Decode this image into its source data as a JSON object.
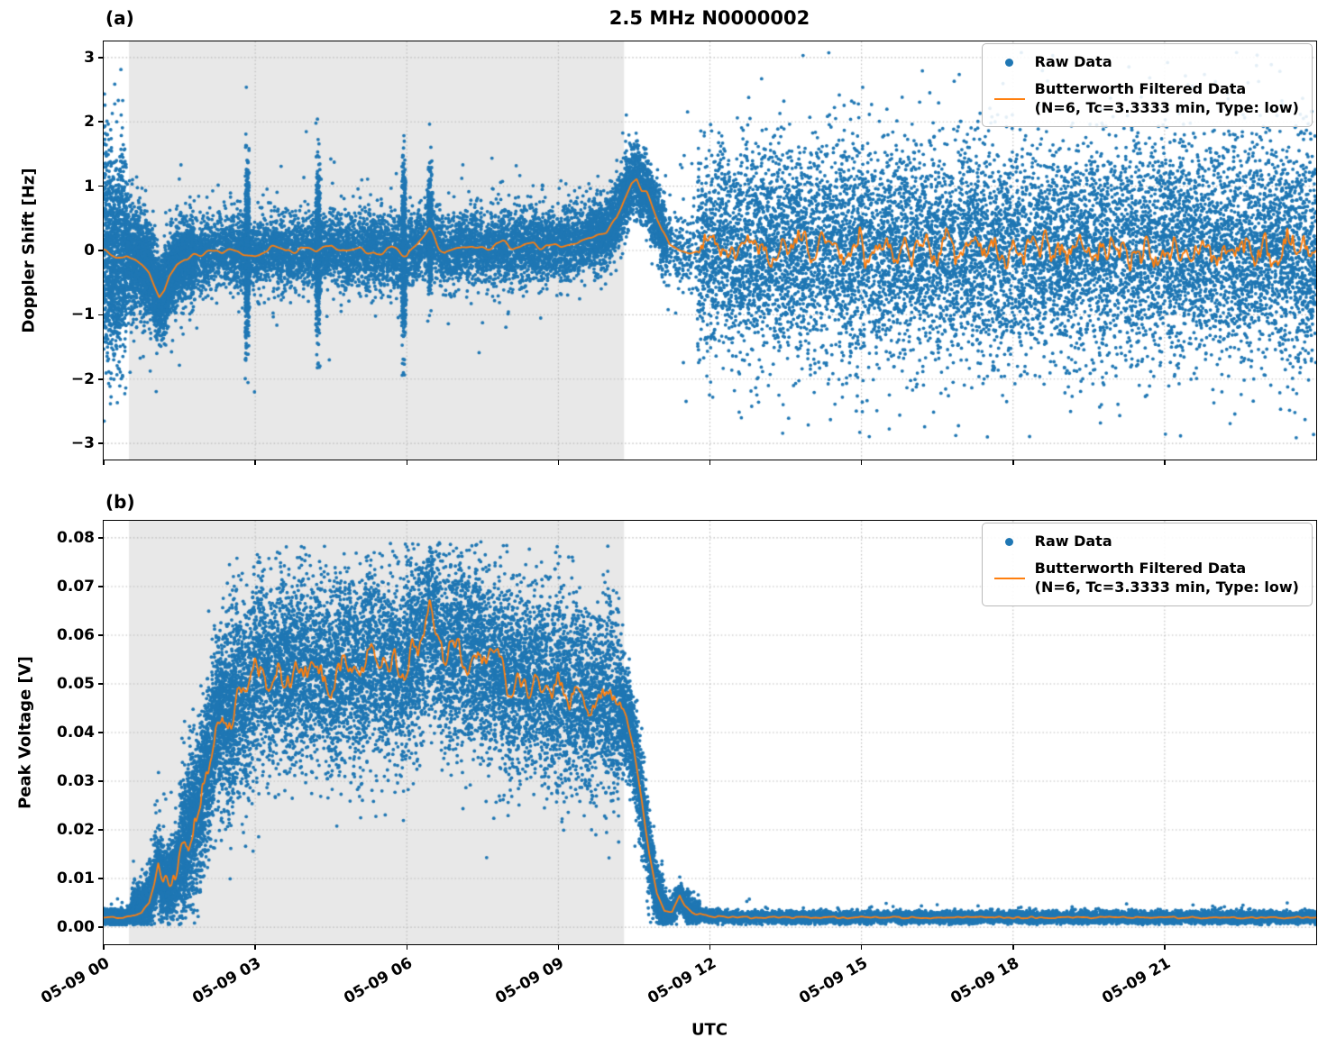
{
  "colors": {
    "raw": "#1f77b4",
    "filtered": "#ff7f0e",
    "shade": "#e8e8e8",
    "grid": "#bbbbbb",
    "axis": "#000000"
  },
  "legend": {
    "raw_label": "Raw Data",
    "filtered_label_line1": "Butterworth Filtered Data",
    "filtered_label_line2": "(N=6, Tc=3.3333 min, Type: low)"
  },
  "x_axis": {
    "label": "UTC",
    "grid_t": [
      3,
      6,
      9,
      12,
      15,
      18,
      21
    ],
    "ticks": [
      {
        "t": 0,
        "label": "05-09 00"
      },
      {
        "t": 3,
        "label": "05-09 03"
      },
      {
        "t": 6,
        "label": "05-09 06"
      },
      {
        "t": 9,
        "label": "05-09 09"
      },
      {
        "t": 12,
        "label": "05-09 12"
      },
      {
        "t": 15,
        "label": "05-09 15"
      },
      {
        "t": 18,
        "label": "05-09 18"
      },
      {
        "t": 21,
        "label": "05-09 21"
      }
    ]
  },
  "chart_data": [
    {
      "id": "a",
      "type": "scatter+line",
      "panel_label": "(a)",
      "title": "2.5 MHz N0000002",
      "ylabel": "Doppler Shift [Hz]",
      "xlim": [
        0,
        24
      ],
      "ylim": [
        -3.25,
        3.25
      ],
      "value_clip": [
        -2.95,
        3.08
      ],
      "yticks": [
        {
          "v": 3,
          "label": "3"
        },
        {
          "v": 2,
          "label": "2"
        },
        {
          "v": 1,
          "label": "1"
        },
        {
          "v": 0,
          "label": "0"
        },
        {
          "v": -1,
          "label": "−1"
        },
        {
          "v": -2,
          "label": "−2"
        },
        {
          "v": -3,
          "label": "−3"
        }
      ],
      "shade_span": {
        "t0": 0.5,
        "t1": 10.3
      },
      "series": [
        {
          "name": "Raw Data",
          "type": "scatter",
          "color": "#1f77b4",
          "segments": [
            [
              0.0,
              0.45,
              0.85,
              0.72,
              2600,
              0.05,
              1.6
            ],
            [
              0.45,
              0.95,
              0.45,
              0.38,
              2200,
              0.03,
              1.7
            ],
            [
              0.95,
              1.8,
              0.32,
              0.3,
              2200,
              0.03,
              1.7
            ],
            [
              1.8,
              9.6,
              0.28,
              0.28,
              950,
              0.04,
              2.2
            ],
            [
              2.8,
              2.88,
              0.7,
              0.7,
              6500,
              0,
              1
            ],
            [
              4.2,
              4.28,
              0.62,
              0.62,
              6000,
              0,
              1
            ],
            [
              5.9,
              5.98,
              0.72,
              0.72,
              6000,
              0,
              1
            ],
            [
              6.42,
              6.5,
              0.5,
              0.5,
              5000,
              0,
              1
            ],
            [
              9.6,
              11.15,
              0.28,
              0.26,
              1500,
              0.02,
              1.6
            ],
            [
              11.15,
              11.75,
              0.26,
              0.3,
              300,
              0.12,
              4.5
            ],
            [
              11.75,
              24.0,
              0.78,
              0.8,
              900,
              0.06,
              1.9
            ]
          ]
        },
        {
          "name": "Butterworth Filtered Data (N=6, Tc=3.3333 min, Type: low)",
          "type": "line",
          "color": "#ff7f0e",
          "points": [
            [
              0,
              0.02
            ],
            [
              0.25,
              -0.08
            ],
            [
              0.45,
              -0.05
            ],
            [
              0.6,
              -0.12
            ],
            [
              0.75,
              -0.18
            ],
            [
              0.9,
              -0.35
            ],
            [
              1.0,
              -0.55
            ],
            [
              1.1,
              -0.73
            ],
            [
              1.2,
              -0.62
            ],
            [
              1.3,
              -0.4
            ],
            [
              1.45,
              -0.22
            ],
            [
              1.6,
              -0.14
            ],
            [
              1.8,
              -0.1
            ],
            [
              2.1,
              -0.05
            ],
            [
              2.4,
              0.02
            ],
            [
              2.7,
              -0.03
            ],
            [
              3.0,
              -0.05
            ],
            [
              3.3,
              0.04
            ],
            [
              3.6,
              -0.02
            ],
            [
              3.9,
              0.03
            ],
            [
              4.2,
              -0.04
            ],
            [
              4.5,
              0.05
            ],
            [
              4.8,
              -0.02
            ],
            [
              5.1,
              0.03
            ],
            [
              5.4,
              -0.05
            ],
            [
              5.7,
              0.02
            ],
            [
              6.0,
              -0.1
            ],
            [
              6.2,
              0.05
            ],
            [
              6.45,
              0.3
            ],
            [
              6.6,
              0.12
            ],
            [
              6.75,
              -0.05
            ],
            [
              7.0,
              0.03
            ],
            [
              7.3,
              0.08
            ],
            [
              7.6,
              0.03
            ],
            [
              7.9,
              0.1
            ],
            [
              8.2,
              0.04
            ],
            [
              8.5,
              0.1
            ],
            [
              8.8,
              0.05
            ],
            [
              9.1,
              0.1
            ],
            [
              9.4,
              0.14
            ],
            [
              9.7,
              0.22
            ],
            [
              9.95,
              0.3
            ],
            [
              10.15,
              0.5
            ],
            [
              10.3,
              0.8
            ],
            [
              10.45,
              1.08
            ],
            [
              10.55,
              1.15
            ],
            [
              10.65,
              0.95
            ],
            [
              10.75,
              0.9
            ],
            [
              10.9,
              0.6
            ],
            [
              11.05,
              0.3
            ],
            [
              11.2,
              0.1
            ],
            [
              11.4,
              0.0
            ],
            [
              11.6,
              -0.05
            ],
            [
              11.9,
              0.02
            ],
            [
              24,
              0
            ]
          ],
          "noise": [
            [
              0.0,
              0.9,
              0.05,
              8
            ],
            [
              1.5,
              9.5,
              0.06,
              7
            ],
            [
              9.6,
              11.3,
              0.04,
              6
            ],
            [
              11.75,
              24,
              0.26,
              9
            ],
            [
              11.75,
              24,
              0.11,
              28
            ]
          ]
        }
      ]
    },
    {
      "id": "b",
      "type": "scatter+line",
      "panel_label": "(b)",
      "title": "",
      "ylabel": "Peak Voltage [V]",
      "xlim": [
        0,
        24
      ],
      "ylim": [
        -0.0035,
        0.0835
      ],
      "value_clip": [
        0.0005,
        0.0793
      ],
      "yticks": [
        {
          "v": 0.08,
          "label": "0.08"
        },
        {
          "v": 0.07,
          "label": "0.07"
        },
        {
          "v": 0.06,
          "label": "0.06"
        },
        {
          "v": 0.05,
          "label": "0.05"
        },
        {
          "v": 0.04,
          "label": "0.04"
        },
        {
          "v": 0.03,
          "label": "0.03"
        },
        {
          "v": 0.02,
          "label": "0.02"
        },
        {
          "v": 0.01,
          "label": "0.01"
        },
        {
          "v": 0.0,
          "label": "0.00"
        }
      ],
      "shade_span": {
        "t0": 0.5,
        "t1": 10.3
      },
      "series": [
        {
          "name": "Raw Data",
          "type": "scatter",
          "color": "#1f77b4",
          "segments": [
            [
              0.0,
              0.55,
              0.0007,
              0.0008,
              2400,
              0.01,
              3
            ],
            [
              0.55,
              1.5,
              0.0025,
              0.004,
              2200,
              0.05,
              2.5
            ],
            [
              1.5,
              2.6,
              0.007,
              0.009,
              2200,
              0.03,
              1.8
            ],
            [
              2.6,
              10.2,
              0.0095,
              0.0095,
              1300,
              0.03,
              1.5
            ],
            [
              10.2,
              11.1,
              0.006,
              0.003,
              1800,
              0.02,
              1.5
            ],
            [
              11.1,
              11.8,
              0.0018,
              0.0012,
              1200,
              0.03,
              2
            ],
            [
              11.8,
              24.0,
              0.0006,
              0.0006,
              800,
              0.02,
              2
            ]
          ]
        },
        {
          "name": "Butterworth Filtered Data (N=6, Tc=3.3333 min, Type: low)",
          "type": "line",
          "color": "#ff7f0e",
          "points": [
            [
              0,
              0.002
            ],
            [
              0.45,
              0.002
            ],
            [
              0.6,
              0.0025
            ],
            [
              0.75,
              0.003
            ],
            [
              0.9,
              0.005
            ],
            [
              1.0,
              0.009
            ],
            [
              1.08,
              0.013
            ],
            [
              1.18,
              0.008
            ],
            [
              1.3,
              0.009
            ],
            [
              1.45,
              0.012
            ],
            [
              1.6,
              0.016
            ],
            [
              1.75,
              0.02
            ],
            [
              1.9,
              0.026
            ],
            [
              2.05,
              0.033
            ],
            [
              2.2,
              0.04
            ],
            [
              2.35,
              0.046
            ],
            [
              2.5,
              0.042
            ],
            [
              2.65,
              0.049
            ],
            [
              2.8,
              0.044
            ],
            [
              2.95,
              0.051
            ],
            [
              3.1,
              0.055
            ],
            [
              3.3,
              0.05
            ],
            [
              3.5,
              0.054
            ],
            [
              3.7,
              0.05
            ],
            [
              3.9,
              0.055
            ],
            [
              4.1,
              0.051
            ],
            [
              4.3,
              0.054
            ],
            [
              4.5,
              0.049
            ],
            [
              4.7,
              0.052
            ],
            [
              4.9,
              0.055
            ],
            [
              5.1,
              0.05
            ],
            [
              5.3,
              0.057
            ],
            [
              5.5,
              0.052
            ],
            [
              5.7,
              0.055
            ],
            [
              5.9,
              0.05
            ],
            [
              6.1,
              0.056
            ],
            [
              6.3,
              0.059
            ],
            [
              6.5,
              0.065
            ],
            [
              6.65,
              0.058
            ],
            [
              6.8,
              0.055
            ],
            [
              7.0,
              0.059
            ],
            [
              7.2,
              0.054
            ],
            [
              7.4,
              0.058
            ],
            [
              7.6,
              0.052
            ],
            [
              7.8,
              0.055
            ],
            [
              8.0,
              0.05
            ],
            [
              8.2,
              0.053
            ],
            [
              8.4,
              0.049
            ],
            [
              8.6,
              0.052
            ],
            [
              8.8,
              0.048
            ],
            [
              9.0,
              0.051
            ],
            [
              9.2,
              0.047
            ],
            [
              9.4,
              0.049
            ],
            [
              9.6,
              0.045
            ],
            [
              9.8,
              0.047
            ],
            [
              10.0,
              0.048
            ],
            [
              10.2,
              0.046
            ],
            [
              10.35,
              0.043
            ],
            [
              10.5,
              0.036
            ],
            [
              10.65,
              0.026
            ],
            [
              10.8,
              0.015
            ],
            [
              10.95,
              0.007
            ],
            [
              11.1,
              0.0035
            ],
            [
              11.25,
              0.003
            ],
            [
              11.4,
              0.0065
            ],
            [
              11.5,
              0.0045
            ],
            [
              11.65,
              0.003
            ],
            [
              11.85,
              0.0025
            ],
            [
              12.3,
              0.002
            ],
            [
              24,
              0.002
            ]
          ],
          "noise": [
            [
              1.1,
              10.4,
              0.003,
              9
            ],
            [
              1.3,
              10.3,
              0.0015,
              26
            ],
            [
              0,
              24,
              0.0002,
              11
            ]
          ]
        }
      ]
    }
  ]
}
